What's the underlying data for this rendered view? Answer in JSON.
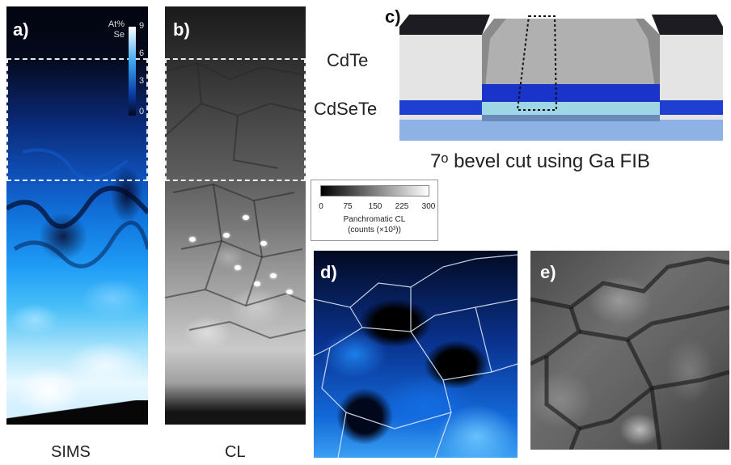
{
  "panels": {
    "a": {
      "letter": "a)",
      "caption": "SIMS",
      "colorbar": {
        "label_line1": "At%",
        "label_line2": "Se",
        "ticks": [
          "9",
          "6",
          "3",
          "0"
        ]
      }
    },
    "b": {
      "letter": "b)",
      "caption": "CL"
    },
    "c": {
      "letter": "c)",
      "layer_top": "CdTe",
      "layer_bottom": "CdSeTe",
      "caption": "7ᵒ bevel cut using Ga FIB"
    },
    "cl_colorbar": {
      "ticks": [
        "0",
        "75",
        "150",
        "225",
        "300"
      ],
      "title_line1": "Panchromatic CL",
      "title_line2": "(counts (×10³))"
    },
    "d": {
      "letter": "d)"
    },
    "e": {
      "letter": "e)"
    }
  },
  "colors": {
    "sims_blue": "#1e9bf5",
    "cdte_layer": "#e2e2e2",
    "cdsete_layer": "#1f3fd0",
    "top_cap": "#1c1c22"
  }
}
